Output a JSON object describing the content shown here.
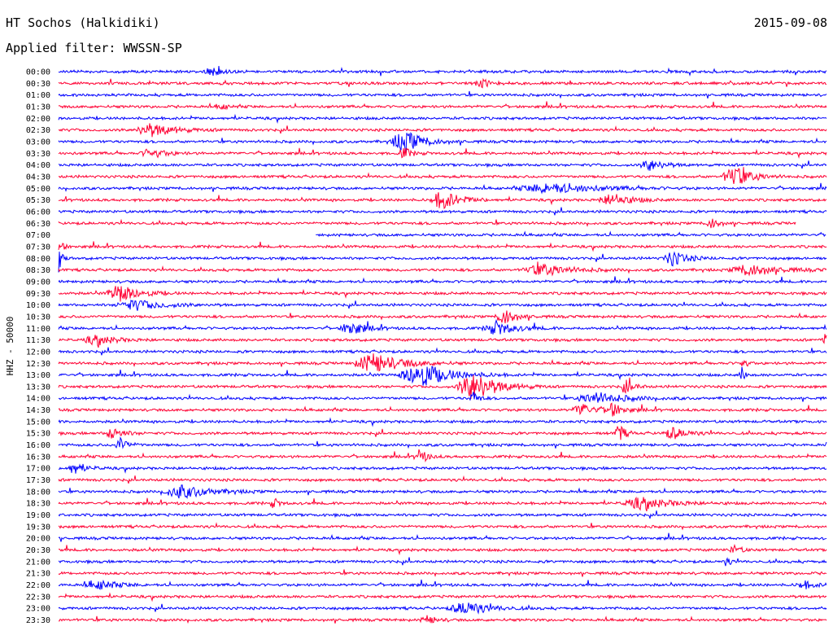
{
  "header": {
    "station": "HT Sochos (Halkidiki)",
    "date": "2015-09-08",
    "filter": "Applied filter: WWSSN-SP"
  },
  "chart_data": {
    "type": "line",
    "ylabel": "HHZ - 50000",
    "row_labels": [
      "00:00",
      "00:30",
      "01:00",
      "01:30",
      "02:00",
      "02:30",
      "03:00",
      "03:30",
      "04:00",
      "04:30",
      "05:00",
      "05:30",
      "06:00",
      "06:30",
      "07:00",
      "07:30",
      "08:00",
      "08:30",
      "09:00",
      "09:30",
      "10:00",
      "10:30",
      "11:00",
      "11:30",
      "12:00",
      "12:30",
      "13:00",
      "13:30",
      "14:00",
      "14:30",
      "15:00",
      "15:30",
      "16:00",
      "16:30",
      "17:00",
      "17:30",
      "18:00",
      "18:30",
      "19:00",
      "19:30",
      "20:00",
      "20:30",
      "21:00",
      "21:30",
      "22:00",
      "22:30",
      "23:00",
      "23:30"
    ],
    "colors": [
      "#0000ff",
      "#ff0033"
    ],
    "segment_minutes": 30,
    "gap": {
      "start": "06:30",
      "end": "07:00",
      "start_fraction": 0.96,
      "end_fraction": 0.335
    },
    "events": [
      {
        "row": "00:00",
        "pos": 0.2,
        "amp": 5,
        "width": 0.012
      },
      {
        "row": "00:30",
        "pos": 0.55,
        "amp": 6,
        "width": 0.01
      },
      {
        "row": "01:30",
        "pos": 0.21,
        "amp": 6,
        "width": 0.006
      },
      {
        "row": "02:30",
        "pos": 0.12,
        "amp": 8,
        "width": 0.025
      },
      {
        "row": "03:00",
        "pos": 0.45,
        "amp": 14,
        "width": 0.02
      },
      {
        "row": "03:30",
        "pos": 0.45,
        "amp": 7,
        "width": 0.008
      },
      {
        "row": "03:30",
        "pos": 0.12,
        "amp": 6,
        "width": 0.015
      },
      {
        "row": "04:00",
        "pos": 0.77,
        "amp": 7,
        "width": 0.015
      },
      {
        "row": "04:30",
        "pos": 0.88,
        "amp": 13,
        "width": 0.018
      },
      {
        "row": "05:00",
        "pos": 0.64,
        "amp": 6,
        "width": 0.05
      },
      {
        "row": "05:30",
        "pos": 0.5,
        "amp": 12,
        "width": 0.018
      },
      {
        "row": "05:30",
        "pos": 0.72,
        "amp": 8,
        "width": 0.02
      },
      {
        "row": "06:30",
        "pos": 0.85,
        "amp": 7,
        "width": 0.008
      },
      {
        "row": "07:30",
        "pos": 0.0,
        "amp": 14,
        "width": 0.004
      },
      {
        "row": "08:00",
        "pos": 0.0,
        "amp": 16,
        "width": 0.004
      },
      {
        "row": "08:00",
        "pos": 0.8,
        "amp": 9,
        "width": 0.015
      },
      {
        "row": "08:30",
        "pos": 0.63,
        "amp": 7,
        "width": 0.03
      },
      {
        "row": "08:30",
        "pos": 0.9,
        "amp": 7,
        "width": 0.03
      },
      {
        "row": "09:30",
        "pos": 0.08,
        "amp": 11,
        "width": 0.02
      },
      {
        "row": "10:00",
        "pos": 0.1,
        "amp": 6,
        "width": 0.03
      },
      {
        "row": "10:30",
        "pos": 0.58,
        "amp": 11,
        "width": 0.012
      },
      {
        "row": "11:00",
        "pos": 0.38,
        "amp": 9,
        "width": 0.015
      },
      {
        "row": "11:00",
        "pos": 0.57,
        "amp": 8,
        "width": 0.02
      },
      {
        "row": "11:30",
        "pos": 1.0,
        "amp": 12,
        "width": 0.006
      },
      {
        "row": "11:30",
        "pos": 0.05,
        "amp": 6,
        "width": 0.02
      },
      {
        "row": "12:30",
        "pos": 0.41,
        "amp": 12,
        "width": 0.03
      },
      {
        "row": "12:30",
        "pos": 0.89,
        "amp": 10,
        "width": 0.004
      },
      {
        "row": "13:00",
        "pos": 0.47,
        "amp": 16,
        "width": 0.03
      },
      {
        "row": "13:00",
        "pos": 0.89,
        "amp": 9,
        "width": 0.004
      },
      {
        "row": "13:30",
        "pos": 0.54,
        "amp": 18,
        "width": 0.025
      },
      {
        "row": "13:30",
        "pos": 0.74,
        "amp": 9,
        "width": 0.008
      },
      {
        "row": "14:00",
        "pos": 0.54,
        "amp": 10,
        "width": 0.005
      },
      {
        "row": "14:00",
        "pos": 0.7,
        "amp": 7,
        "width": 0.03
      },
      {
        "row": "14:30",
        "pos": 0.68,
        "amp": 9,
        "width": 0.012
      },
      {
        "row": "14:30",
        "pos": 0.72,
        "amp": 9,
        "width": 0.012
      },
      {
        "row": "15:30",
        "pos": 0.07,
        "amp": 7,
        "width": 0.012
      },
      {
        "row": "15:30",
        "pos": 0.73,
        "amp": 12,
        "width": 0.006
      },
      {
        "row": "15:30",
        "pos": 0.8,
        "amp": 7,
        "width": 0.015
      },
      {
        "row": "16:00",
        "pos": 0.08,
        "amp": 9,
        "width": 0.008
      },
      {
        "row": "16:30",
        "pos": 0.47,
        "amp": 9,
        "width": 0.008
      },
      {
        "row": "17:00",
        "pos": 0.02,
        "amp": 7,
        "width": 0.012
      },
      {
        "row": "18:00",
        "pos": 0.16,
        "amp": 8,
        "width": 0.03
      },
      {
        "row": "18:30",
        "pos": 0.76,
        "amp": 7,
        "width": 0.03
      },
      {
        "row": "18:30",
        "pos": 0.28,
        "amp": 6,
        "width": 0.006
      },
      {
        "row": "20:30",
        "pos": 0.88,
        "amp": 5,
        "width": 0.008
      },
      {
        "row": "21:00",
        "pos": 0.87,
        "amp": 6,
        "width": 0.004
      },
      {
        "row": "22:00",
        "pos": 0.05,
        "amp": 6,
        "width": 0.02
      },
      {
        "row": "22:00",
        "pos": 0.97,
        "amp": 5,
        "width": 0.012
      },
      {
        "row": "23:00",
        "pos": 0.53,
        "amp": 8,
        "width": 0.025
      },
      {
        "row": "23:30",
        "pos": 0.48,
        "amp": 5,
        "width": 0.01
      }
    ]
  }
}
